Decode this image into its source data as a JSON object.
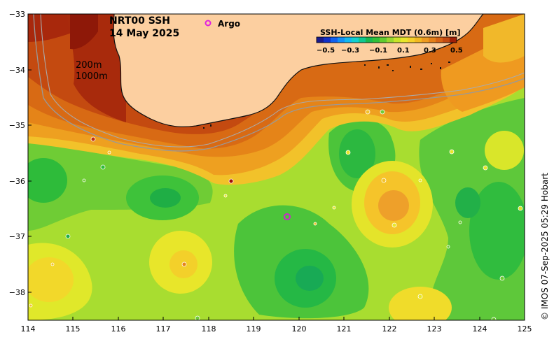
{
  "title_line1": "NRT00 SSH",
  "title_line2": "14 May 2025",
  "legend": {
    "label": "Argo",
    "marker_symbol": "o",
    "marker_color": "#e020e0"
  },
  "isobaths": {
    "shallow": "200m",
    "deep": "1000m"
  },
  "colorbar": {
    "title": "SSH-Local Mean MDT (0.6m) [m]",
    "ticks": [
      "−0.5",
      "−0.3",
      "−0.1",
      "0.1",
      "0.3",
      "0.5"
    ]
  },
  "axes": {
    "x_ticks": [
      "114",
      "115",
      "116",
      "117",
      "118",
      "119",
      "120",
      "121",
      "122",
      "123",
      "124",
      "125"
    ],
    "y_ticks": [
      "−33",
      "−34",
      "−35",
      "−36",
      "−37",
      "−38"
    ]
  },
  "credit": "© IMOS 07-Sep-2025 05:29 Hobart",
  "colors": {
    "land": "#fccfa0",
    "background": "#9ad93c"
  }
}
